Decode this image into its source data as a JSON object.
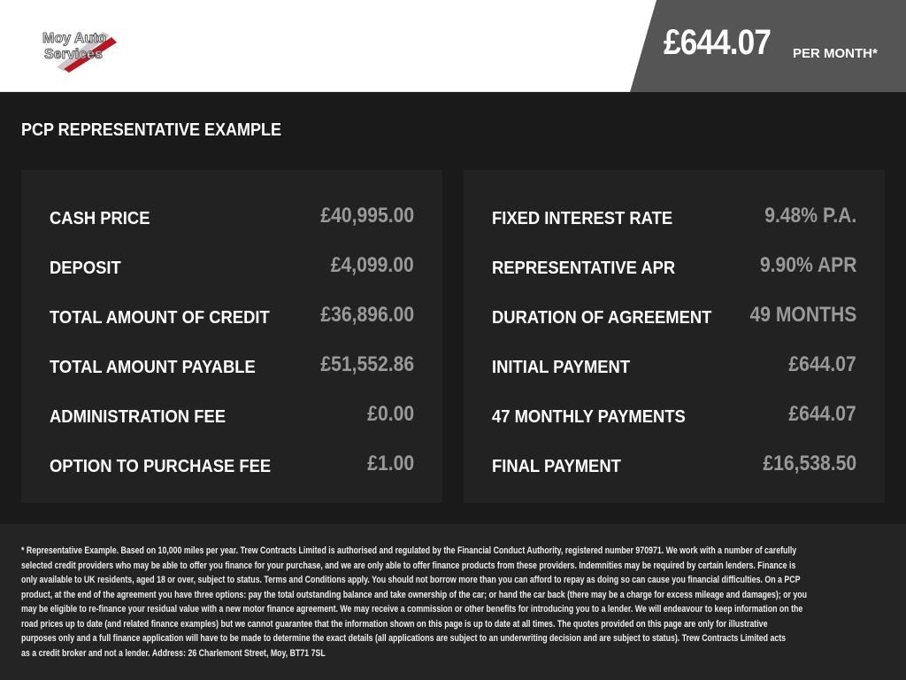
{
  "header": {
    "logo_text": "Moy Auto Services",
    "price": "£644.07",
    "per_month": "PER MONTH*"
  },
  "title": "PCP REPRESENTATIVE EXAMPLE",
  "left": [
    {
      "label": "CASH PRICE",
      "value": "£40,995.00"
    },
    {
      "label": "DEPOSIT",
      "value": "£4,099.00"
    },
    {
      "label": "TOTAL AMOUNT OF CREDIT",
      "value": "£36,896.00"
    },
    {
      "label": "TOTAL AMOUNT PAYABLE",
      "value": "£51,552.86"
    },
    {
      "label": "ADMINISTRATION FEE",
      "value": "£0.00"
    },
    {
      "label": "OPTION TO PURCHASE FEE",
      "value": "£1.00"
    }
  ],
  "right": [
    {
      "label": "FIXED INTEREST RATE",
      "value": "9.48% P.A."
    },
    {
      "label": "REPRESENTATIVE APR",
      "value": "9.90% APR"
    },
    {
      "label": "DURATION OF AGREEMENT",
      "value": "49 MONTHS"
    },
    {
      "label": "INITIAL PAYMENT",
      "value": "£644.07"
    },
    {
      "label": "47 MONTHLY PAYMENTS",
      "value": "£644.07"
    },
    {
      "label": "FINAL PAYMENT",
      "value": "£16,538.50"
    }
  ],
  "disclaimer": [
    "* Representative Example. Based on 10,000 miles per year. Trew Contracts Limited is authorised and regulated by the Financial Conduct Authority, registered number 970971. We work with a number of carefully",
    "selected credit providers who may be able to offer you finance for your purchase, and we are only able to offer finance products from these providers. Indemnities may be required by certain lenders. Finance is",
    "only available to UK residents, aged 18 or over, subject to status. Terms and Conditions apply. You should not borrow more than you can afford to repay as doing so can cause you financial difficulties. On a PCP",
    "product, at the end of the agreement you have three options: pay the total outstanding balance and take ownership of the car; or hand the car back (there may be a charge for excess mileage and damages); or you",
    "may be eligible to re-finance your residual value with a new motor finance agreement. We may receive a commission or other benefits for introducing you to a lender. We will endeavour to keep information on the",
    "road prices up to date (and related finance examples) but we cannot guarantee that the information shown on this page is up to date at all times. The quotes provided on this page are only for illustrative",
    "purposes only and a full finance application will have to be made to determine the exact details (all applications are subject to an underwriting decision and are subject to status). Trew Contracts Limited acts",
    "as a credit broker and not a lender. Address: 26 Charlemont Street, Moy, BT71 7SL"
  ]
}
